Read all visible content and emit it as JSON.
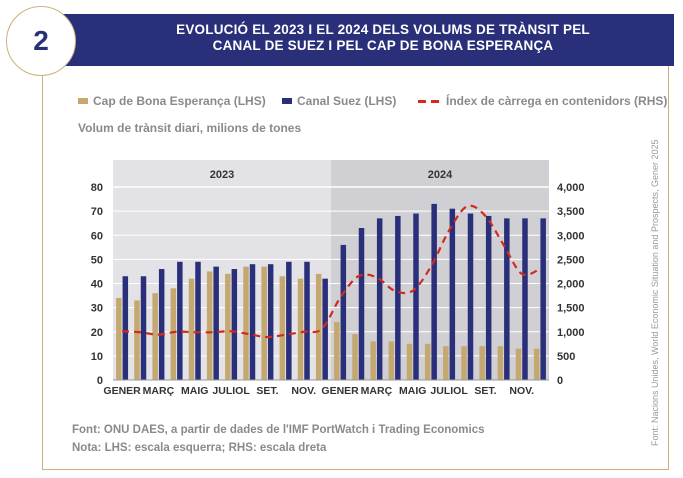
{
  "figure": {
    "number": "2",
    "title": "EVOLUCIÓ EL 2023 I EL 2024 DELS VOLUMS DE TRÀNSIT PEL CANAL DE SUEZ I PEL CAP DE BONA ESPERANÇA",
    "subtitle": "Volum de trànsit diari, milions de tones",
    "source": "Font: ONU DAES, a partir de dades de l'IMF PortWatch i Trading Economics",
    "note": "Nota: LHS: escala esquerra; RHS: escala dreta",
    "side_credit": "Font: Nacions Unides, World Economic Situation and Prospects, Gener 2025"
  },
  "chart_data": {
    "type": "bar",
    "categories": [
      "GENER",
      "FEBRER",
      "MARÇ",
      "ABRIL",
      "MAIG",
      "JUNY",
      "JULIOL",
      "AGOST",
      "SET.",
      "OCT.",
      "NOV.",
      "DES.",
      "GENER",
      "FEBRER",
      "MARÇ",
      "ABRIL",
      "MAIG",
      "JUNY",
      "JULIOL",
      "AGOST",
      "SET.",
      "OCT.",
      "NOV.",
      "DES."
    ],
    "x_tick_labels": [
      "GENER",
      "",
      "MARÇ",
      "",
      "MAIG",
      "",
      "JULIOL",
      "",
      "SET.",
      "",
      "NOV.",
      "",
      "GENER",
      "",
      "MARÇ",
      "",
      "MAIG",
      "",
      "JULIOL",
      "",
      "SET.",
      "",
      "NOV.",
      ""
    ],
    "period_labels": [
      "2023",
      "2024"
    ],
    "series": [
      {
        "name": "Cap de Bona Esperança (LHS)",
        "axis": "left",
        "color": "#c4a870",
        "values": [
          34,
          33,
          36,
          38,
          42,
          45,
          44,
          47,
          47,
          43,
          42,
          44,
          24,
          19,
          16,
          16,
          15,
          15,
          14,
          14,
          14,
          14,
          13,
          13
        ]
      },
      {
        "name": "Canal Suez (LHS)",
        "axis": "left",
        "color": "#2a2f7a",
        "values": [
          43,
          43,
          46,
          49,
          49,
          47,
          46,
          48,
          48,
          49,
          49,
          42,
          56,
          63,
          67,
          68,
          69,
          73,
          71,
          69,
          68,
          67,
          67,
          67
        ]
      },
      {
        "name": "Índex de càrrega en contenidors (RHS)",
        "axis": "right",
        "color": "#d42a1c",
        "style": "dashed",
        "values": [
          1010,
          990,
          940,
          1000,
          990,
          990,
          1010,
          950,
          890,
          940,
          1000,
          1060,
          1700,
          2150,
          2130,
          1850,
          1850,
          2350,
          3100,
          3600,
          3400,
          2800,
          2200,
          2300
        ]
      }
    ],
    "y_left": {
      "min": 0,
      "max": 80,
      "ticks": [
        0,
        10,
        20,
        30,
        40,
        50,
        60,
        70,
        80
      ]
    },
    "y_right": {
      "min": 0,
      "max": 4000,
      "ticks": [
        "0",
        "500",
        "1,000",
        "1,500",
        "2,000",
        "2,500",
        "3,000",
        "3,500",
        "4,000"
      ]
    },
    "legend_position": "top",
    "grid": true
  }
}
